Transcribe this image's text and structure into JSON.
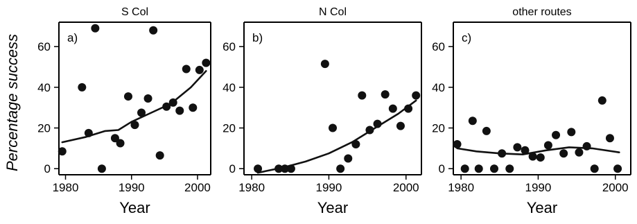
{
  "ylabel": "Percentage success",
  "chart_data": [
    {
      "type": "scatter",
      "title": "S Col",
      "panel_label": "a)",
      "xlabel": "Year",
      "ylabel": "Percentage success",
      "xlim": [
        1979,
        2002
      ],
      "ylim": [
        -3,
        72
      ],
      "xticks": [
        1980,
        1990,
        2000
      ],
      "yticks": [
        0,
        20,
        40,
        60
      ],
      "points": [
        {
          "x": 1979.5,
          "y": 8.5
        },
        {
          "x": 1982.5,
          "y": 40
        },
        {
          "x": 1983.5,
          "y": 17.5
        },
        {
          "x": 1984.5,
          "y": 69
        },
        {
          "x": 1985.5,
          "y": 0
        },
        {
          "x": 1987.5,
          "y": 15
        },
        {
          "x": 1988.3,
          "y": 12.5
        },
        {
          "x": 1989.5,
          "y": 35.5
        },
        {
          "x": 1990.5,
          "y": 21.5
        },
        {
          "x": 1991.5,
          "y": 27.5
        },
        {
          "x": 1992.5,
          "y": 34.5
        },
        {
          "x": 1993.3,
          "y": 68
        },
        {
          "x": 1994.3,
          "y": 6.5
        },
        {
          "x": 1995.3,
          "y": 30.5
        },
        {
          "x": 1996.3,
          "y": 32.5
        },
        {
          "x": 1997.3,
          "y": 28.5
        },
        {
          "x": 1998.3,
          "y": 49
        },
        {
          "x": 1999.3,
          "y": 30
        },
        {
          "x": 2000.3,
          "y": 48.5
        },
        {
          "x": 2001.3,
          "y": 52
        }
      ],
      "trend": [
        {
          "x": 1979.5,
          "y": 13
        },
        {
          "x": 1983,
          "y": 15.5
        },
        {
          "x": 1986,
          "y": 18.5
        },
        {
          "x": 1988,
          "y": 19
        },
        {
          "x": 1990,
          "y": 23
        },
        {
          "x": 1993,
          "y": 27.5
        },
        {
          "x": 1996,
          "y": 32
        },
        {
          "x": 1999,
          "y": 40
        },
        {
          "x": 2001.3,
          "y": 48
        }
      ]
    },
    {
      "type": "scatter",
      "title": "N Col",
      "panel_label": "b)",
      "xlabel": "Year",
      "ylabel": "",
      "xlim": [
        1979,
        2002
      ],
      "ylim": [
        -3,
        72
      ],
      "xticks": [
        1980,
        1990,
        2000
      ],
      "yticks": [
        0,
        20,
        40,
        60
      ],
      "points": [
        {
          "x": 1980.8,
          "y": 0
        },
        {
          "x": 1983.5,
          "y": 0
        },
        {
          "x": 1984.3,
          "y": 0
        },
        {
          "x": 1985.1,
          "y": 0
        },
        {
          "x": 1989.5,
          "y": 51.5
        },
        {
          "x": 1990.5,
          "y": 20
        },
        {
          "x": 1991.5,
          "y": 0
        },
        {
          "x": 1992.5,
          "y": 5
        },
        {
          "x": 1993.5,
          "y": 12
        },
        {
          "x": 1994.3,
          "y": 36
        },
        {
          "x": 1995.3,
          "y": 19
        },
        {
          "x": 1996.3,
          "y": 22
        },
        {
          "x": 1997.3,
          "y": 36.5
        },
        {
          "x": 1998.3,
          "y": 29.5
        },
        {
          "x": 1999.3,
          "y": 21
        },
        {
          "x": 2000.3,
          "y": 29.5
        },
        {
          "x": 2001.3,
          "y": 36
        }
      ],
      "trend": [
        {
          "x": 1980.8,
          "y": -2
        },
        {
          "x": 1984,
          "y": 0.5
        },
        {
          "x": 1987,
          "y": 3.5
        },
        {
          "x": 1990,
          "y": 7.5
        },
        {
          "x": 1993,
          "y": 13
        },
        {
          "x": 1996,
          "y": 20
        },
        {
          "x": 1999,
          "y": 27
        },
        {
          "x": 2001.3,
          "y": 33.5
        }
      ]
    },
    {
      "type": "scatter",
      "title": "other routes",
      "panel_label": "c)",
      "xlabel": "Year",
      "ylabel": "",
      "xlim": [
        1979,
        2002
      ],
      "ylim": [
        -3,
        72
      ],
      "xticks": [
        1980,
        1990,
        2000
      ],
      "yticks": [
        0,
        20,
        40,
        60
      ],
      "points": [
        {
          "x": 1979.5,
          "y": 12
        },
        {
          "x": 1980.5,
          "y": 0
        },
        {
          "x": 1981.5,
          "y": 23.5
        },
        {
          "x": 1982.3,
          "y": 0
        },
        {
          "x": 1983.3,
          "y": 18.5
        },
        {
          "x": 1984.3,
          "y": 0
        },
        {
          "x": 1985.3,
          "y": 7.5
        },
        {
          "x": 1986.3,
          "y": 0
        },
        {
          "x": 1987.3,
          "y": 10.5
        },
        {
          "x": 1988.3,
          "y": 9
        },
        {
          "x": 1989.3,
          "y": 6
        },
        {
          "x": 1990.3,
          "y": 5.5
        },
        {
          "x": 1991.3,
          "y": 11.5
        },
        {
          "x": 1992.3,
          "y": 16.5
        },
        {
          "x": 1993.3,
          "y": 7.5
        },
        {
          "x": 1994.3,
          "y": 18
        },
        {
          "x": 1995.3,
          "y": 8
        },
        {
          "x": 1996.3,
          "y": 11
        },
        {
          "x": 1997.3,
          "y": 0
        },
        {
          "x": 1998.3,
          "y": 33.5
        },
        {
          "x": 1999.3,
          "y": 15
        },
        {
          "x": 2000.3,
          "y": 0
        }
      ],
      "trend": [
        {
          "x": 1979.5,
          "y": 10
        },
        {
          "x": 1982,
          "y": 8.5
        },
        {
          "x": 1985,
          "y": 7.5
        },
        {
          "x": 1988,
          "y": 7
        },
        {
          "x": 1991,
          "y": 9
        },
        {
          "x": 1994,
          "y": 10.5
        },
        {
          "x": 1997,
          "y": 10
        },
        {
          "x": 2000.5,
          "y": 8
        }
      ]
    }
  ]
}
